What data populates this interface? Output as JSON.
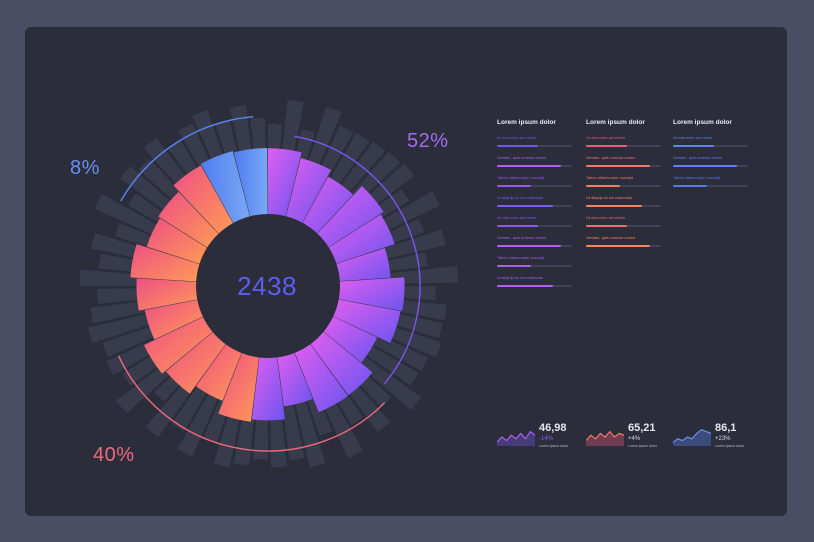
{
  "colors": {
    "background": "#4a4e64",
    "panel": "#2b2d3b",
    "purple": "#8c5cf2",
    "pink": "#ee5f8c",
    "orange": "#ff9a55",
    "blue": "#5a84f5"
  },
  "chart_data": {
    "type": "radial-stacked-bar",
    "center_value": "2438",
    "segments": [
      {
        "label": "52%",
        "value": 52,
        "color_from": "#c14ff0",
        "color_to": "#7b55f0"
      },
      {
        "label": "40%",
        "value": 40,
        "color_from": "#ff9a55",
        "color_to": "#ee4f85"
      },
      {
        "label": "8%",
        "value": 8,
        "color_from": "#5a84f5",
        "color_to": "#6c9cf5"
      }
    ]
  },
  "columns": [
    {
      "title": "Lorem ipsum dolor",
      "items": [
        {
          "label": "Ut wisi enim ad minim",
          "fill": 0.55,
          "color": "#6b58f0"
        },
        {
          "label": "Veniam, quis nostrud exerci",
          "fill": 0.85,
          "color": "#b25cf0"
        },
        {
          "label": "Tation ullamcorper suscipit",
          "fill": 0.45,
          "color": "#9a55f0"
        },
        {
          "label": "Ut aliquip ex ea commodo",
          "fill": 0.75,
          "color": "#7c5cf2"
        },
        {
          "label": "Ut wisi enim ad minim",
          "fill": 0.55,
          "color": "#8a58f0"
        },
        {
          "label": "Veniam, quis nostrud exerci",
          "fill": 0.85,
          "color": "#b65cf0"
        },
        {
          "label": "Tation ullamcorper suscipit",
          "fill": 0.45,
          "color": "#a85cf0"
        },
        {
          "label": "Ut aliquip ex ea commodo",
          "fill": 0.75,
          "color": "#b55cf0"
        }
      ]
    },
    {
      "title": "Lorem ipsum dolor",
      "items": [
        {
          "label": "Ut wisi enim ad minim",
          "fill": 0.55,
          "color": "#ee5a7e"
        },
        {
          "label": "Veniam, quis nostrud exerci",
          "fill": 0.85,
          "color": "#f3766c"
        },
        {
          "label": "Tation ullamcorper suscipit",
          "fill": 0.45,
          "color": "#f57b6a"
        },
        {
          "label": "Ut aliquip ex ea commodo",
          "fill": 0.75,
          "color": "#f6835e"
        },
        {
          "label": "Ut wisi enim ad minim",
          "fill": 0.55,
          "color": "#f06a73"
        },
        {
          "label": "Veniam, quis nostrud exerci",
          "fill": 0.85,
          "color": "#f6855c"
        }
      ]
    },
    {
      "title": "Lorem ipsum dolor",
      "items": [
        {
          "label": "Ut wisi enim ad minim",
          "fill": 0.55,
          "color": "#5a84f5"
        },
        {
          "label": "Veniam, quis nostrud exerci",
          "fill": 0.85,
          "color": "#5f7df5"
        },
        {
          "label": "Tation ullamcorper suscipit",
          "fill": 0.45,
          "color": "#5478f0"
        }
      ]
    }
  ],
  "stats": [
    {
      "value": "46,98",
      "change": "-14%",
      "change_color": "#8c5cf2",
      "caption": "Lorem ipsum dolor",
      "line_color": "#b05cf0",
      "area_color": "#7a55f0",
      "spark": [
        8,
        5,
        7,
        4,
        6,
        3,
        6,
        2,
        4
      ]
    },
    {
      "value": "65,21",
      "change": "+4%",
      "change_color": "#d6d8e2",
      "caption": "Lorem ipsum dolor",
      "line_color": "#f47a66",
      "area_color": "#ee5a7e",
      "spark": [
        7,
        4,
        6,
        3,
        5,
        2,
        5,
        3,
        4
      ]
    },
    {
      "value": "86,1",
      "change": "+23%",
      "change_color": "#d6d8e2",
      "caption": "Lorem ipsum dolor",
      "line_color": "#6a8ff5",
      "area_color": "#5a84f5",
      "spark": [
        8,
        6,
        7,
        5,
        6,
        3,
        1,
        2,
        3
      ]
    }
  ]
}
